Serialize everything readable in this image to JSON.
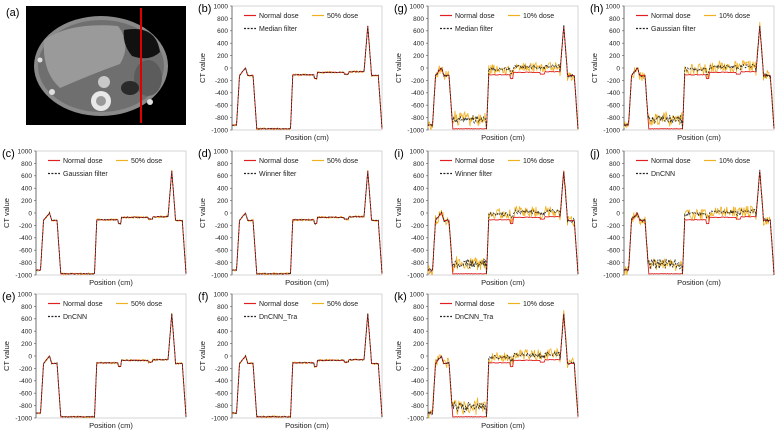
{
  "figure": {
    "ct_panel_label": "(a)",
    "ct_image_description": "Axial abdominal CT slice with a red vertical line indicating the profile position"
  },
  "colors": {
    "normal": "#e02020",
    "dose": "#f0b020",
    "filter": "#222222",
    "profile_line": "#e00000"
  },
  "chart_data": [
    {
      "id": "b",
      "type": "line",
      "label": "(b)",
      "ylabel": "CT value",
      "xlabel": "Position  (cm)",
      "ylim": [
        -1000,
        1000
      ],
      "yticks": [
        -1000,
        -800,
        -600,
        -400,
        -200,
        0,
        200,
        400,
        600,
        800,
        1000
      ],
      "legend": [
        "Normal dose",
        "50% dose",
        "Median filter"
      ],
      "legend_placement": "top-left",
      "grid": false
    },
    {
      "id": "c",
      "type": "line",
      "label": "(c)",
      "ylabel": "CT value",
      "xlabel": "Position  (cm)",
      "ylim": [
        -1000,
        1000
      ],
      "yticks": [
        -1000,
        -800,
        -600,
        -400,
        -200,
        0,
        200,
        400,
        600,
        800,
        1000
      ],
      "legend": [
        "Normal dose",
        "50% dose",
        "Gaussian filter"
      ],
      "legend_placement": "top-left",
      "grid": false
    },
    {
      "id": "d",
      "type": "line",
      "label": "(d)",
      "ylabel": "CT value",
      "xlabel": "Position  (cm)",
      "ylim": [
        -1000,
        1000
      ],
      "yticks": [
        -1000,
        -800,
        -600,
        -400,
        -200,
        0,
        200,
        400,
        600,
        800,
        1000
      ],
      "legend": [
        "Normal dose",
        "50% dose",
        "Winner filter"
      ],
      "legend_placement": "top-left",
      "grid": false
    },
    {
      "id": "e",
      "type": "line",
      "label": "(e)",
      "ylabel": "CT value",
      "xlabel": "Position  (cm)",
      "ylim": [
        -1000,
        1000
      ],
      "yticks": [
        -1000,
        -800,
        -600,
        -400,
        -200,
        0,
        200,
        400,
        600,
        800,
        1000
      ],
      "legend": [
        "Normal dose",
        "50% dose",
        "DnCNN"
      ],
      "legend_placement": "top-left",
      "grid": false
    },
    {
      "id": "f",
      "type": "line",
      "label": "(f)",
      "ylabel": "CT value",
      "xlabel": "Position  (cm)",
      "ylim": [
        -1000,
        1000
      ],
      "yticks": [
        -1000,
        -800,
        -600,
        -400,
        -200,
        0,
        200,
        400,
        600,
        800,
        1000
      ],
      "legend": [
        "Normal dose",
        "50% dose",
        "DnCNN_Tra"
      ],
      "legend_placement": "top-left",
      "grid": false
    },
    {
      "id": "g",
      "type": "line",
      "label": "(g)",
      "ylabel": "CT value",
      "xlabel": "Position  (cm)",
      "ylim": [
        -1000,
        1000
      ],
      "yticks": [
        -1000,
        -800,
        -600,
        -400,
        -200,
        0,
        200,
        400,
        600,
        800,
        1000
      ],
      "legend": [
        "Normal dose",
        "10% dose",
        "Median filter"
      ],
      "legend_placement": "top-left",
      "grid": false
    },
    {
      "id": "h",
      "type": "line",
      "label": "(h)",
      "ylabel": "CT value",
      "xlabel": "Position  (cm)",
      "ylim": [
        -1000,
        1000
      ],
      "yticks": [
        -1000,
        -800,
        -600,
        -400,
        -200,
        0,
        200,
        400,
        600,
        800,
        1000
      ],
      "legend": [
        "Normal dose",
        "10% dose",
        "Gaussian filter"
      ],
      "legend_placement": "top-left",
      "grid": false
    },
    {
      "id": "i",
      "type": "line",
      "label": "(i)",
      "ylabel": "CT value",
      "xlabel": "Position  (cm)",
      "ylim": [
        -1000,
        1000
      ],
      "yticks": [
        -1000,
        -800,
        -600,
        -400,
        -200,
        0,
        200,
        400,
        600,
        800,
        1000
      ],
      "legend": [
        "Normal dose",
        "10% dose",
        "Winner filter"
      ],
      "legend_placement": "top-left",
      "grid": false
    },
    {
      "id": "j",
      "type": "line",
      "label": "(j)",
      "ylabel": "CT value",
      "xlabel": "Position  (cm)",
      "ylim": [
        -1000,
        1000
      ],
      "yticks": [
        -1000,
        -800,
        -600,
        -400,
        -200,
        0,
        200,
        400,
        600,
        800,
        1000
      ],
      "legend": [
        "Normal dose",
        "10% dose",
        "DnCNN"
      ],
      "legend_placement": "top-left",
      "grid": false
    },
    {
      "id": "k",
      "type": "line",
      "label": "(k)",
      "ylabel": "CT value",
      "xlabel": "Position  (cm)",
      "ylim": [
        -1000,
        1000
      ],
      "yticks": [
        -1000,
        -800,
        -600,
        -400,
        -200,
        0,
        200,
        400,
        600,
        800,
        1000
      ],
      "legend": [
        "Normal dose",
        "10% dose",
        "DnCNN_Tra"
      ],
      "legend_placement": "top-left",
      "grid": false
    }
  ]
}
